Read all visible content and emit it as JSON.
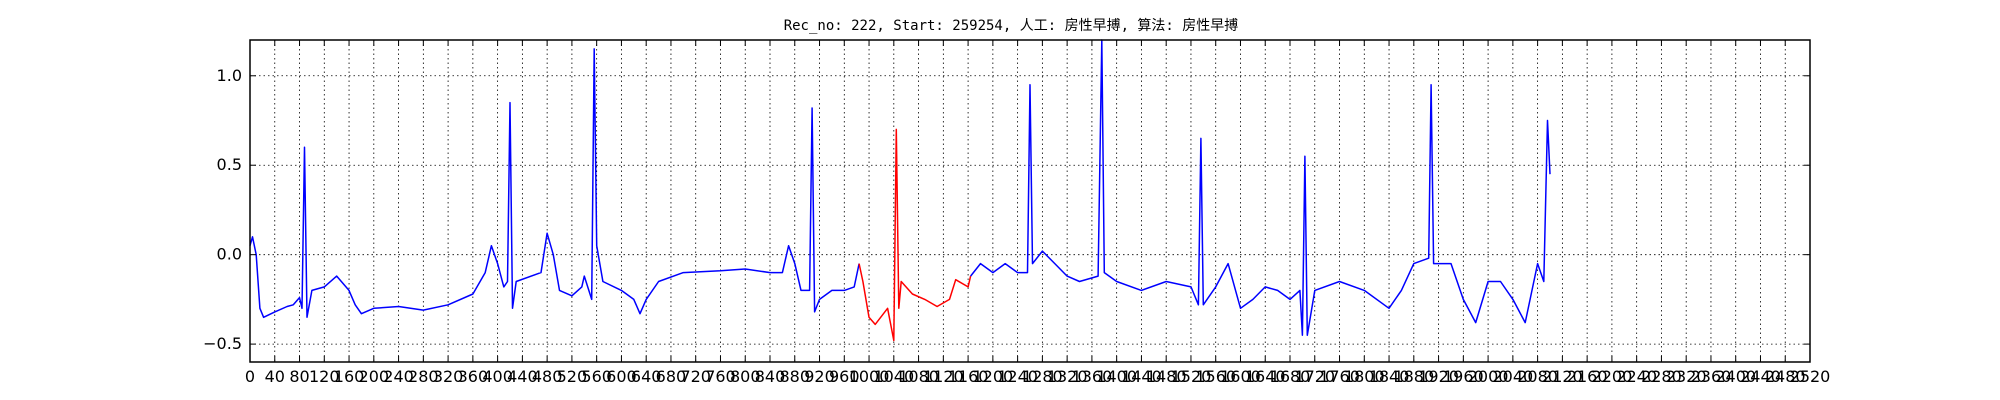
{
  "chart_data": {
    "type": "line",
    "title": "Rec_no: 222, Start: 259254, 人工: 房性早搏, 算法: 房性早搏",
    "xlabel": "",
    "ylabel": "",
    "xlim": [
      0,
      2520
    ],
    "ylim": [
      -0.6,
      1.2
    ],
    "grid": true,
    "x_ticks": [
      0,
      40,
      80,
      120,
      160,
      200,
      240,
      280,
      320,
      360,
      400,
      440,
      480,
      520,
      560,
      600,
      640,
      680,
      720,
      760,
      800,
      840,
      880,
      920,
      960,
      1000,
      1040,
      1080,
      1120,
      1160,
      1200,
      1240,
      1280,
      1320,
      1360,
      1400,
      1440,
      1480,
      1520,
      1560,
      1600,
      1640,
      1680,
      1720,
      1760,
      1800,
      1840,
      1880,
      1920,
      1960,
      2000,
      2040,
      2080,
      2120,
      2160,
      2200,
      2240,
      2280,
      2320,
      2360,
      2400,
      2440,
      2480,
      2520
    ],
    "x_tick_labels": [
      "0",
      "40",
      "80",
      "120",
      "160",
      "200",
      "240",
      "280",
      "320",
      "360",
      "400",
      "440",
      "480",
      "520",
      "560",
      "600",
      "640",
      "680",
      "720",
      "760",
      "800",
      "840",
      "880",
      "920",
      "960",
      "1000",
      "1040",
      "1080",
      "1120",
      "1160",
      "1200",
      "1240",
      "1280",
      "1320",
      "1360",
      "1400",
      "1440",
      "1480",
      "1520",
      "1560",
      "1600",
      "1640",
      "1680",
      "1720",
      "1760",
      "1800",
      "1840",
      "1880",
      "1920",
      "1960",
      "2000",
      "2040",
      "2080",
      "2120",
      "2160",
      "2200",
      "2240",
      "2280",
      "2320",
      "2360",
      "2400",
      "2440",
      "2480",
      "2520"
    ],
    "y_ticks": [
      -0.5,
      0.0,
      0.5,
      1.0
    ],
    "y_tick_labels": [
      "−0.5",
      "0.0",
      "0.5",
      "1.0"
    ],
    "series": [
      {
        "color": "#0000ff",
        "points": [
          [
            0,
            0.05
          ],
          [
            4,
            0.1
          ],
          [
            10,
            0.0
          ],
          [
            16,
            -0.3
          ],
          [
            22,
            -0.35
          ],
          [
            40,
            -0.32
          ],
          [
            60,
            -0.29
          ],
          [
            70,
            -0.28
          ],
          [
            80,
            -0.24
          ],
          [
            84,
            -0.3
          ],
          [
            88,
            0.6
          ],
          [
            92,
            -0.35
          ],
          [
            100,
            -0.2
          ],
          [
            120,
            -0.18
          ],
          [
            140,
            -0.12
          ],
          [
            160,
            -0.2
          ],
          [
            170,
            -0.28
          ],
          [
            180,
            -0.33
          ],
          [
            200,
            -0.3
          ],
          [
            240,
            -0.29
          ],
          [
            280,
            -0.31
          ],
          [
            320,
            -0.28
          ],
          [
            360,
            -0.22
          ],
          [
            380,
            -0.1
          ],
          [
            390,
            0.05
          ],
          [
            400,
            -0.05
          ],
          [
            410,
            -0.18
          ],
          [
            416,
            -0.15
          ],
          [
            420,
            0.85
          ],
          [
            424,
            -0.3
          ],
          [
            430,
            -0.15
          ],
          [
            470,
            -0.1
          ],
          [
            480,
            0.12
          ],
          [
            490,
            0.0
          ],
          [
            500,
            -0.2
          ],
          [
            520,
            -0.23
          ],
          [
            536,
            -0.18
          ],
          [
            540,
            -0.12
          ],
          [
            552,
            -0.25
          ],
          [
            556,
            1.15
          ],
          [
            560,
            0.05
          ],
          [
            570,
            -0.15
          ],
          [
            600,
            -0.2
          ],
          [
            620,
            -0.25
          ],
          [
            630,
            -0.33
          ],
          [
            640,
            -0.25
          ],
          [
            660,
            -0.15
          ],
          [
            700,
            -0.1
          ],
          [
            760,
            -0.09
          ],
          [
            800,
            -0.08
          ],
          [
            840,
            -0.1
          ],
          [
            860,
            -0.1
          ],
          [
            870,
            0.05
          ],
          [
            880,
            -0.05
          ],
          [
            890,
            -0.2
          ],
          [
            904,
            -0.2
          ],
          [
            908,
            0.82
          ],
          [
            912,
            -0.32
          ],
          [
            920,
            -0.25
          ],
          [
            940,
            -0.2
          ],
          [
            960,
            -0.2
          ],
          [
            976,
            -0.18
          ],
          [
            984,
            -0.05
          ]
        ]
      },
      {
        "color": "#ff0000",
        "points": [
          [
            984,
            -0.05
          ],
          [
            990,
            -0.15
          ],
          [
            1000,
            -0.35
          ],
          [
            1010,
            -0.39
          ],
          [
            1030,
            -0.3
          ],
          [
            1040,
            -0.48
          ],
          [
            1044,
            0.7
          ],
          [
            1048,
            -0.3
          ],
          [
            1052,
            -0.15
          ],
          [
            1070,
            -0.22
          ],
          [
            1090,
            -0.25
          ],
          [
            1110,
            -0.29
          ],
          [
            1130,
            -0.25
          ],
          [
            1140,
            -0.14
          ],
          [
            1160,
            -0.18
          ],
          [
            1164,
            -0.12
          ]
        ]
      },
      {
        "color": "#0000ff",
        "points": [
          [
            1164,
            -0.12
          ],
          [
            1180,
            -0.05
          ],
          [
            1200,
            -0.1
          ],
          [
            1220,
            -0.05
          ],
          [
            1240,
            -0.1
          ],
          [
            1256,
            -0.1
          ],
          [
            1260,
            0.95
          ],
          [
            1264,
            -0.05
          ],
          [
            1280,
            0.02
          ],
          [
            1300,
            -0.05
          ],
          [
            1320,
            -0.12
          ],
          [
            1340,
            -0.15
          ],
          [
            1370,
            -0.12
          ],
          [
            1376,
            1.2
          ],
          [
            1380,
            -0.1
          ],
          [
            1400,
            -0.15
          ],
          [
            1440,
            -0.2
          ],
          [
            1480,
            -0.15
          ],
          [
            1520,
            -0.18
          ],
          [
            1532,
            -0.28
          ],
          [
            1536,
            0.65
          ],
          [
            1540,
            -0.28
          ],
          [
            1560,
            -0.18
          ],
          [
            1580,
            -0.05
          ],
          [
            1600,
            -0.3
          ],
          [
            1620,
            -0.25
          ],
          [
            1640,
            -0.18
          ],
          [
            1660,
            -0.2
          ],
          [
            1680,
            -0.25
          ],
          [
            1696,
            -0.2
          ],
          [
            1700,
            -0.45
          ],
          [
            1704,
            0.55
          ],
          [
            1708,
            -0.45
          ],
          [
            1720,
            -0.2
          ],
          [
            1760,
            -0.15
          ],
          [
            1800,
            -0.2
          ],
          [
            1840,
            -0.3
          ],
          [
            1860,
            -0.2
          ],
          [
            1880,
            -0.05
          ],
          [
            1904,
            -0.02
          ],
          [
            1908,
            0.95
          ],
          [
            1912,
            -0.05
          ],
          [
            1940,
            -0.05
          ],
          [
            1960,
            -0.25
          ],
          [
            1980,
            -0.38
          ],
          [
            2000,
            -0.15
          ],
          [
            2020,
            -0.15
          ],
          [
            2040,
            -0.25
          ],
          [
            2060,
            -0.38
          ],
          [
            2080,
            -0.05
          ],
          [
            2090,
            -0.15
          ],
          [
            2096,
            0.75
          ],
          [
            2100,
            0.45
          ]
        ]
      }
    ]
  }
}
